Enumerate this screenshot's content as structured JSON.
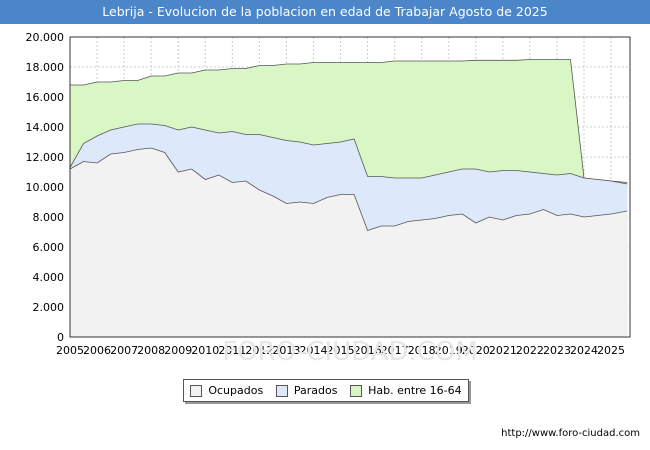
{
  "header": {
    "title": "Lebrija - Evolucion de la poblacion en edad de Trabajar Agosto de 2025"
  },
  "source": "http://www.foro-ciudad.com",
  "watermark": "FORO-CIUDAD.COM",
  "colors": {
    "title_bg": "#4a86c8",
    "ocupados": "#f2f2f2",
    "parados": "#dde9fa",
    "hab": "#d9f7c4",
    "line": "#555555",
    "grid": "#cccccc"
  },
  "chart_data": {
    "type": "area",
    "title": "Lebrija - Evolucion de la poblacion en edad de Trabajar Agosto de 2025",
    "xlabel": "",
    "ylabel": "",
    "xlim": [
      2005,
      2025.7
    ],
    "ylim": [
      0,
      20000
    ],
    "grid": true,
    "legend_position": "bottom",
    "x_ticks": [
      "2005",
      "2006",
      "2007",
      "2008",
      "2009",
      "2010",
      "2011",
      "2012",
      "2013",
      "2014",
      "2015",
      "2016",
      "2017",
      "2018",
      "2019",
      "2020",
      "2021",
      "2022",
      "2023",
      "2024",
      "2025"
    ],
    "y_ticks": [
      "0",
      "2.000",
      "4.000",
      "6.000",
      "8.000",
      "10.000",
      "12.000",
      "14.000",
      "16.000",
      "18.000",
      "20.000"
    ],
    "x": [
      2005.0,
      2005.5,
      2006.0,
      2006.5,
      2007.0,
      2007.5,
      2008.0,
      2008.5,
      2009.0,
      2009.5,
      2010.0,
      2010.5,
      2011.0,
      2011.5,
      2012.0,
      2012.5,
      2013.0,
      2013.5,
      2014.0,
      2014.5,
      2015.0,
      2015.5,
      2016.0,
      2016.5,
      2017.0,
      2017.5,
      2018.0,
      2018.5,
      2019.0,
      2019.5,
      2020.0,
      2020.5,
      2021.0,
      2021.5,
      2022.0,
      2022.5,
      2023.0,
      2023.5,
      2024.0,
      2024.5,
      2025.0,
      2025.6
    ],
    "series": [
      {
        "name": "Hab. entre 16-64",
        "values": [
          16800,
          16800,
          17000,
          17000,
          17100,
          17100,
          17400,
          17400,
          17600,
          17600,
          17800,
          17800,
          17900,
          17900,
          18100,
          18100,
          18200,
          18200,
          18300,
          18300,
          18300,
          18300,
          18300,
          18300,
          18400,
          18400,
          18400,
          18400,
          18400,
          18400,
          18450,
          18450,
          18450,
          18450,
          18500,
          18500,
          18500,
          18500,
          10600,
          10500,
          10400,
          10300
        ]
      },
      {
        "name": "Parados",
        "values": [
          11300,
          12900,
          13400,
          13800,
          14000,
          14200,
          14200,
          14100,
          13800,
          14000,
          13800,
          13600,
          13700,
          13500,
          13500,
          13300,
          13100,
          13000,
          12800,
          12900,
          13000,
          13200,
          10700,
          10700,
          10600,
          10600,
          10600,
          10800,
          11000,
          11200,
          11200,
          11000,
          11100,
          11100,
          11000,
          10900,
          10800,
          10900,
          10600,
          10500,
          10400,
          10200
        ]
      },
      {
        "name": "Ocupados",
        "values": [
          11200,
          11700,
          11600,
          12200,
          12300,
          12500,
          12600,
          12300,
          11000,
          11200,
          10500,
          10800,
          10300,
          10400,
          9800,
          9400,
          8900,
          9000,
          8900,
          9300,
          9500,
          9500,
          7100,
          7400,
          7400,
          7700,
          7800,
          7900,
          8100,
          8200,
          7600,
          8000,
          7800,
          8100,
          8200,
          8500,
          8100,
          8200,
          8000,
          8100,
          8200,
          8400
        ]
      }
    ]
  },
  "legend": {
    "items": [
      {
        "label": "Ocupados",
        "color": "#f2f2f2"
      },
      {
        "label": "Parados",
        "color": "#dde9fa"
      },
      {
        "label": "Hab. entre 16-64",
        "color": "#d9f7c4"
      }
    ]
  }
}
